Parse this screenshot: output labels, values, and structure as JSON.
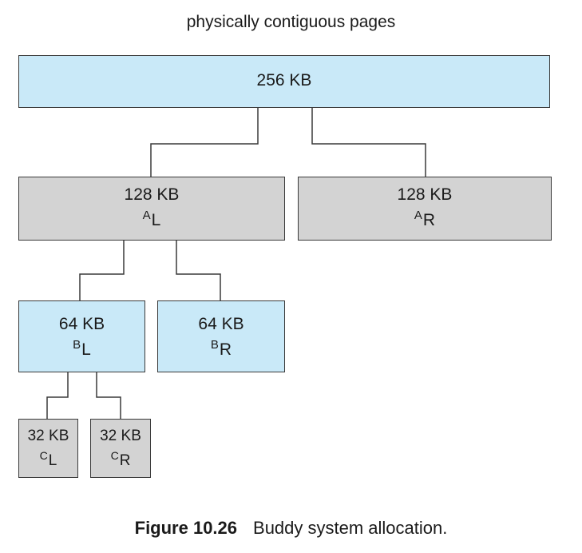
{
  "diagram": {
    "heading": "physically contiguous pages",
    "root": {
      "size": "256 KB"
    },
    "a_left": {
      "size": "128 KB",
      "letter": "A",
      "side": "L"
    },
    "a_right": {
      "size": "128 KB",
      "letter": "A",
      "side": "R"
    },
    "b_left": {
      "size": "64 KB",
      "letter": "B",
      "side": "L"
    },
    "b_right": {
      "size": "64 KB",
      "letter": "B",
      "side": "R"
    },
    "c_left": {
      "size": "32 KB",
      "letter": "C",
      "side": "L"
    },
    "c_right": {
      "size": "32 KB",
      "letter": "C",
      "side": "R"
    }
  },
  "caption": {
    "figure_number": "Figure 10.26",
    "text": "Buddy system allocation."
  },
  "colors": {
    "free_block": "#c9e9f8",
    "split_block": "#d3d3d3",
    "outline": "#3a3a3a"
  }
}
